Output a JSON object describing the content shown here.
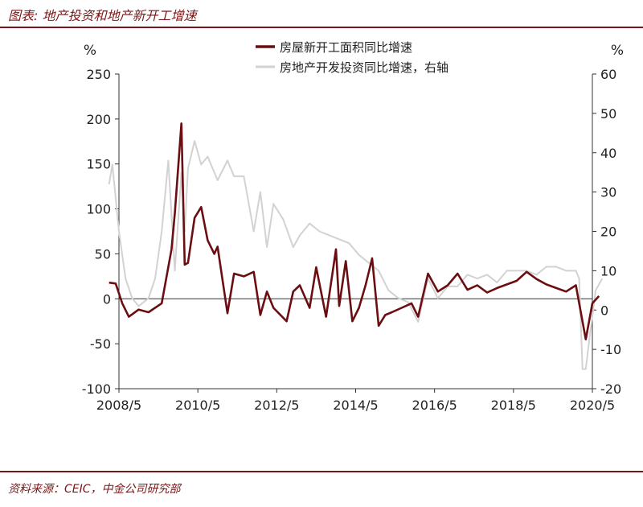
{
  "header": {
    "title": "图表: 地产投资和地产新开工增速"
  },
  "footer": {
    "source": "资料来源：CEIC，中金公司研究部"
  },
  "colors": {
    "accent": "#7a1515",
    "series_starts": "#6b0e12",
    "series_investment": "#d2d2d2"
  },
  "chart_data": {
    "type": "line",
    "left_axis": {
      "unit": "%",
      "ylim": [
        -100,
        250
      ],
      "ticks": [
        250,
        200,
        150,
        100,
        50,
        0,
        -50,
        -100
      ]
    },
    "right_axis": {
      "unit": "%",
      "ylim": [
        -20,
        60
      ],
      "ticks": [
        60,
        50,
        40,
        30,
        20,
        10,
        0,
        -10,
        -20
      ]
    },
    "x_axis": {
      "tick_labels": [
        "2008/5",
        "2010/5",
        "2012/5",
        "2014/5",
        "2016/5",
        "2018/5",
        "2020/5"
      ]
    },
    "legend": {
      "placement": "top-center"
    },
    "grid": false,
    "series": [
      {
        "name": "房屋新开工面积同比增速",
        "axis": "left",
        "x": [
          "2008/2",
          "2008/4",
          "2008/6",
          "2008/8",
          "2008/11",
          "2009/2",
          "2009/6",
          "2009/9",
          "2009/10",
          "2009/12",
          "2010/1",
          "2010/2",
          "2010/4",
          "2010/6",
          "2010/8",
          "2010/10",
          "2010/11",
          "2011/2",
          "2011/4",
          "2011/7",
          "2011/10",
          "2011/12",
          "2012/2",
          "2012/4",
          "2012/8",
          "2012/10",
          "2012/12",
          "2013/3",
          "2013/5",
          "2013/8",
          "2013/11",
          "2013/12",
          "2014/2",
          "2014/4",
          "2014/6",
          "2014/8",
          "2014/10",
          "2014/12",
          "2015/2",
          "2015/4",
          "2015/7",
          "2015/10",
          "2015/12",
          "2016/3",
          "2016/6",
          "2016/9",
          "2016/12",
          "2017/3",
          "2017/6",
          "2017/9",
          "2017/12",
          "2018/3",
          "2018/6",
          "2018/9",
          "2018/12",
          "2019/3",
          "2019/6",
          "2019/9",
          "2019/12",
          "2020/1",
          "2020/3",
          "2020/5",
          "2020/7"
        ],
        "values": [
          18,
          17,
          -5,
          -20,
          -12,
          -15,
          -5,
          55,
          95,
          195,
          38,
          40,
          90,
          102,
          65,
          50,
          58,
          -16,
          28,
          25,
          30,
          -18,
          8,
          -10,
          -25,
          8,
          15,
          -10,
          35,
          -20,
          55,
          -8,
          42,
          -25,
          -10,
          15,
          45,
          -30,
          -18,
          -15,
          -10,
          -5,
          -20,
          28,
          8,
          15,
          28,
          10,
          15,
          7,
          12,
          16,
          20,
          30,
          22,
          16,
          12,
          8,
          15,
          -5,
          -45,
          -5,
          3
        ]
      },
      {
        "name": "房地产开发投资同比增速，右轴",
        "axis": "right",
        "x": [
          "2008/2",
          "2008/3",
          "2008/5",
          "2008/7",
          "2008/9",
          "2008/11",
          "2009/2",
          "2009/4",
          "2009/6",
          "2009/8",
          "2009/10",
          "2009/12",
          "2010/1",
          "2010/2",
          "2010/4",
          "2010/6",
          "2010/8",
          "2010/11",
          "2011/2",
          "2011/4",
          "2011/7",
          "2011/10",
          "2011/12",
          "2012/2",
          "2012/4",
          "2012/7",
          "2012/10",
          "2012/12",
          "2013/3",
          "2013/6",
          "2013/9",
          "2013/12",
          "2014/3",
          "2014/6",
          "2014/9",
          "2014/12",
          "2015/3",
          "2015/6",
          "2015/9",
          "2015/12",
          "2016/3",
          "2016/6",
          "2016/9",
          "2016/12",
          "2017/3",
          "2017/6",
          "2017/9",
          "2017/12",
          "2018/3",
          "2018/6",
          "2018/9",
          "2018/12",
          "2019/3",
          "2019/6",
          "2019/9",
          "2019/12",
          "2020/1",
          "2020/2",
          "2020/3",
          "2020/4",
          "2020/6",
          "2020/8"
        ],
        "values": [
          32,
          37,
          20,
          8,
          3,
          1,
          3,
          8,
          20,
          38,
          10,
          35,
          20,
          36,
          43,
          37,
          39,
          33,
          38,
          34,
          34,
          20,
          30,
          16,
          27,
          23,
          16,
          19,
          22,
          20,
          19,
          18,
          17,
          14,
          12,
          10,
          5,
          3,
          2,
          -3,
          8,
          3,
          6,
          6,
          9,
          8,
          9,
          7,
          10,
          10,
          10,
          9,
          11,
          11,
          10,
          10,
          8,
          -15,
          -15,
          -8,
          5,
          8
        ]
      }
    ]
  }
}
